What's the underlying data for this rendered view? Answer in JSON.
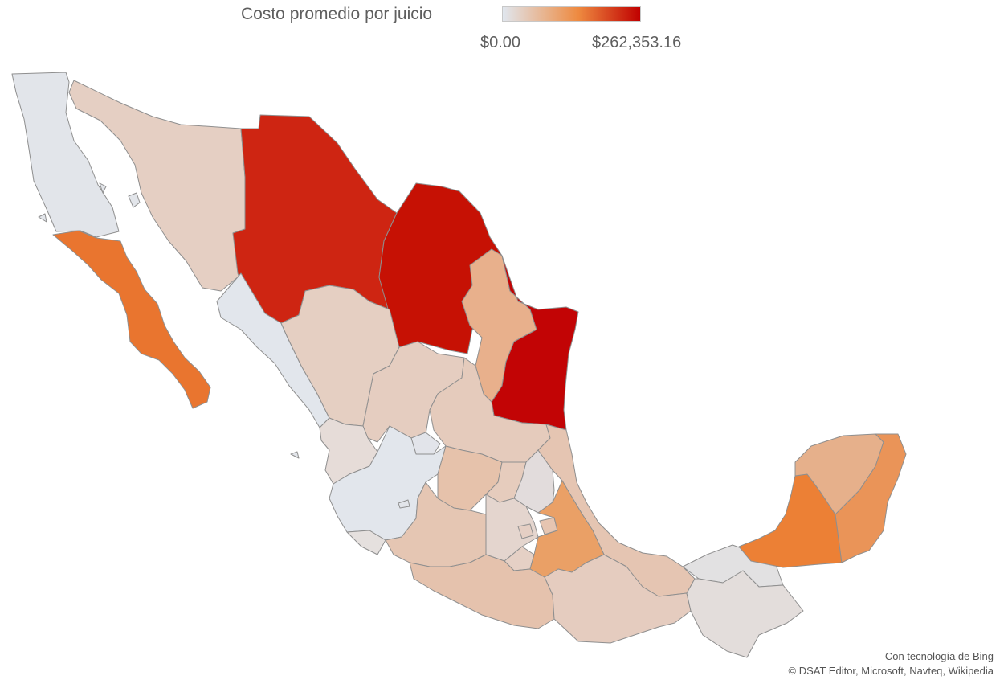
{
  "legend": {
    "title": "Costo promedio por juicio",
    "min_label": "$0.00",
    "max_label": "$262,353.16",
    "gradient": [
      "#e0e6ee",
      "#ee8a40",
      "#c00000"
    ]
  },
  "attribution": {
    "powered_by": "Con tecnología de Bing",
    "copyright": "© DSAT Editor, Microsoft, Navteq, Wikipedia"
  },
  "states": [
    {
      "name": "baja-california",
      "fill": "#e2e5ea"
    },
    {
      "name": "baja-california-sur",
      "fill": "#e9752f"
    },
    {
      "name": "sonora",
      "fill": "#e5cfc3"
    },
    {
      "name": "chihuahua",
      "fill": "#ce2512"
    },
    {
      "name": "coahuila",
      "fill": "#c61104"
    },
    {
      "name": "nuevo-leon",
      "fill": "#e8b08c"
    },
    {
      "name": "tamaulipas",
      "fill": "#c20405"
    },
    {
      "name": "sinaloa",
      "fill": "#e2e6ec"
    },
    {
      "name": "durango",
      "fill": "#e5cfc2"
    },
    {
      "name": "zacatecas",
      "fill": "#e5cdc0"
    },
    {
      "name": "san-luis-potosi",
      "fill": "#e5cbbc"
    },
    {
      "name": "nayarit",
      "fill": "#e6dcd8"
    },
    {
      "name": "aguascalientes",
      "fill": "#e2e4ea"
    },
    {
      "name": "jalisco",
      "fill": "#e2e6ec"
    },
    {
      "name": "guanajuato",
      "fill": "#e6c2ab"
    },
    {
      "name": "queretaro",
      "fill": "#e6ccbd"
    },
    {
      "name": "hidalgo",
      "fill": "#e2dcdc"
    },
    {
      "name": "veracruz",
      "fill": "#e5c5b2"
    },
    {
      "name": "colima",
      "fill": "#e5e0de"
    },
    {
      "name": "michoacan",
      "fill": "#e5c6b3"
    },
    {
      "name": "mexico",
      "fill": "#e4d5ce"
    },
    {
      "name": "cdmx",
      "fill": "#e5cfc4"
    },
    {
      "name": "tlaxcala",
      "fill": "#e6c5b1"
    },
    {
      "name": "morelos",
      "fill": "#e5d0c5"
    },
    {
      "name": "puebla",
      "fill": "#eaa066"
    },
    {
      "name": "guerrero",
      "fill": "#e5c2ad"
    },
    {
      "name": "oaxaca",
      "fill": "#e5ccbf"
    },
    {
      "name": "tabasco",
      "fill": "#e2e1e2"
    },
    {
      "name": "chiapas",
      "fill": "#e3dddb"
    },
    {
      "name": "campeche",
      "fill": "#ec8035"
    },
    {
      "name": "yucatan",
      "fill": "#e6b08b"
    },
    {
      "name": "quintana-roo",
      "fill": "#ea9458"
    }
  ]
}
